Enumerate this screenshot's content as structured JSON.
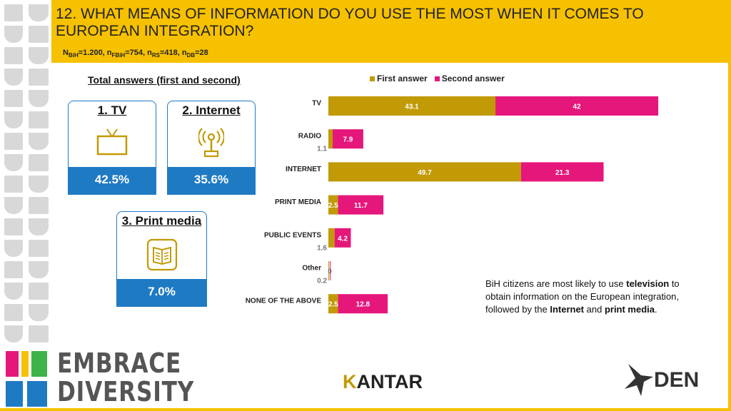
{
  "header": {
    "title": "12. WHAT MEANS OF INFORMATION DO YOU USE THE MOST WHEN IT COMES TO EUROPEAN INTEGRATION?",
    "sample": {
      "n": "N",
      "n_sub": "BiH",
      "n_val": "=1.200, n",
      "f_sub": "FBiH",
      "f_val": "=754, n",
      "r_sub": "RS",
      "r_val": "=418, n",
      "d_sub": "DB",
      "d_val": "=28"
    }
  },
  "summary": {
    "label": "Total answers (first and second)",
    "cards": [
      {
        "title": "1. TV",
        "value": "42.5%",
        "icon": "tv-icon"
      },
      {
        "title": "2. Internet",
        "value": "35.6%",
        "icon": "antenna-icon"
      },
      {
        "title": "3. Print media",
        "value": "7.0%",
        "icon": "newspaper-icon"
      }
    ]
  },
  "legend": {
    "first": "First answer",
    "second": "Second answer"
  },
  "colors": {
    "first": "#c19a06",
    "second": "#e5177b",
    "accent": "#f6c100",
    "blue": "#1f7ac4"
  },
  "chart_data": {
    "type": "bar",
    "orientation": "horizontal",
    "stacked": true,
    "categories": [
      "TV",
      "RADIO",
      "INTERNET",
      "PRINT MEDIA",
      "PUBLIC EVENTS",
      "Other",
      "NONE OF THE ABOVE"
    ],
    "series": [
      {
        "name": "First answer",
        "values": [
          43.1,
          1.1,
          49.7,
          2.5,
          1.6,
          0.2,
          2.5
        ],
        "labels": [
          "43.1",
          "1.1",
          "49.7",
          "2.5",
          "1.6",
          "0.2",
          "2.5"
        ]
      },
      {
        "name": "Second answer",
        "values": [
          42,
          7.9,
          21.3,
          11.7,
          4.2,
          0,
          12.8
        ],
        "labels": [
          "42",
          "7.9",
          "21.3",
          "11.7",
          "4.2",
          "0",
          "12.8"
        ]
      }
    ],
    "xlim": [
      0,
      100
    ]
  },
  "note": {
    "p1": "BiH citizens are most likely to use ",
    "b1": "television",
    "p2": " to obtain information on the European integration, followed by the ",
    "b2": "Internet",
    "p3": " and ",
    "b3": "print media",
    "p4": "."
  },
  "footer": {
    "embrace_line1": "EMBRACE",
    "embrace_line2": "DIVERSITY",
    "kantar_k": "K",
    "kantar_rest": "ANTAR",
    "den": "DEN"
  }
}
